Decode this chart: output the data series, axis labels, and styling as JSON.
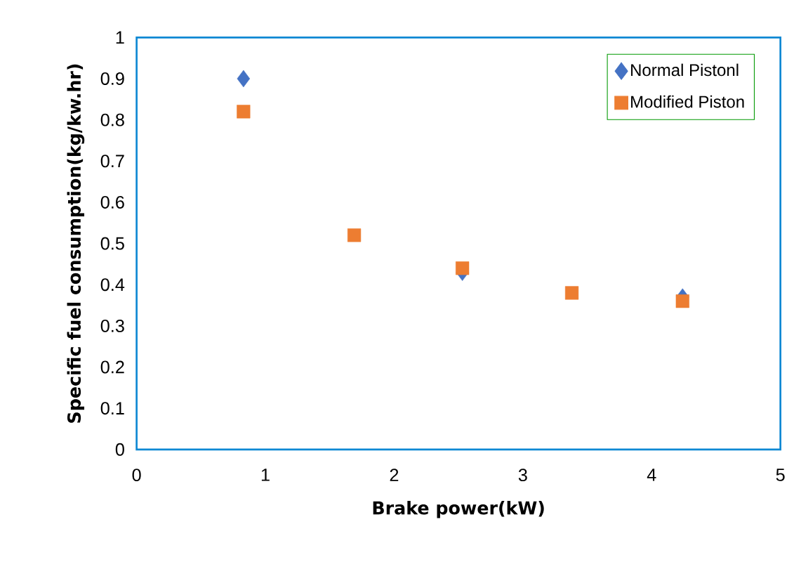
{
  "chart_data": {
    "type": "scatter",
    "xlabel": "Brake power(kW)",
    "ylabel": "Specific fuel consumption(kg/kw.hr)",
    "x": [
      0.83,
      1.69,
      2.53,
      3.38,
      4.24
    ],
    "series": [
      {
        "name": "Normal Pistonl",
        "color": "#4472c4",
        "marker": "diamond",
        "values": [
          0.9,
          null,
          0.43,
          null,
          0.37
        ]
      },
      {
        "name": "Modified Piston",
        "color": "#ed7d31",
        "marker": "square",
        "values": [
          0.82,
          0.52,
          0.44,
          0.38,
          0.36
        ]
      }
    ],
    "xlim": [
      0,
      5
    ],
    "ylim": [
      0,
      1
    ],
    "xticks": [
      0,
      1,
      2,
      3,
      4,
      5
    ],
    "yticks": [
      0,
      0.1,
      0.2,
      0.3,
      0.4,
      0.5,
      0.6,
      0.7,
      0.8,
      0.9,
      1
    ],
    "grid": false,
    "legend": "top right"
  }
}
